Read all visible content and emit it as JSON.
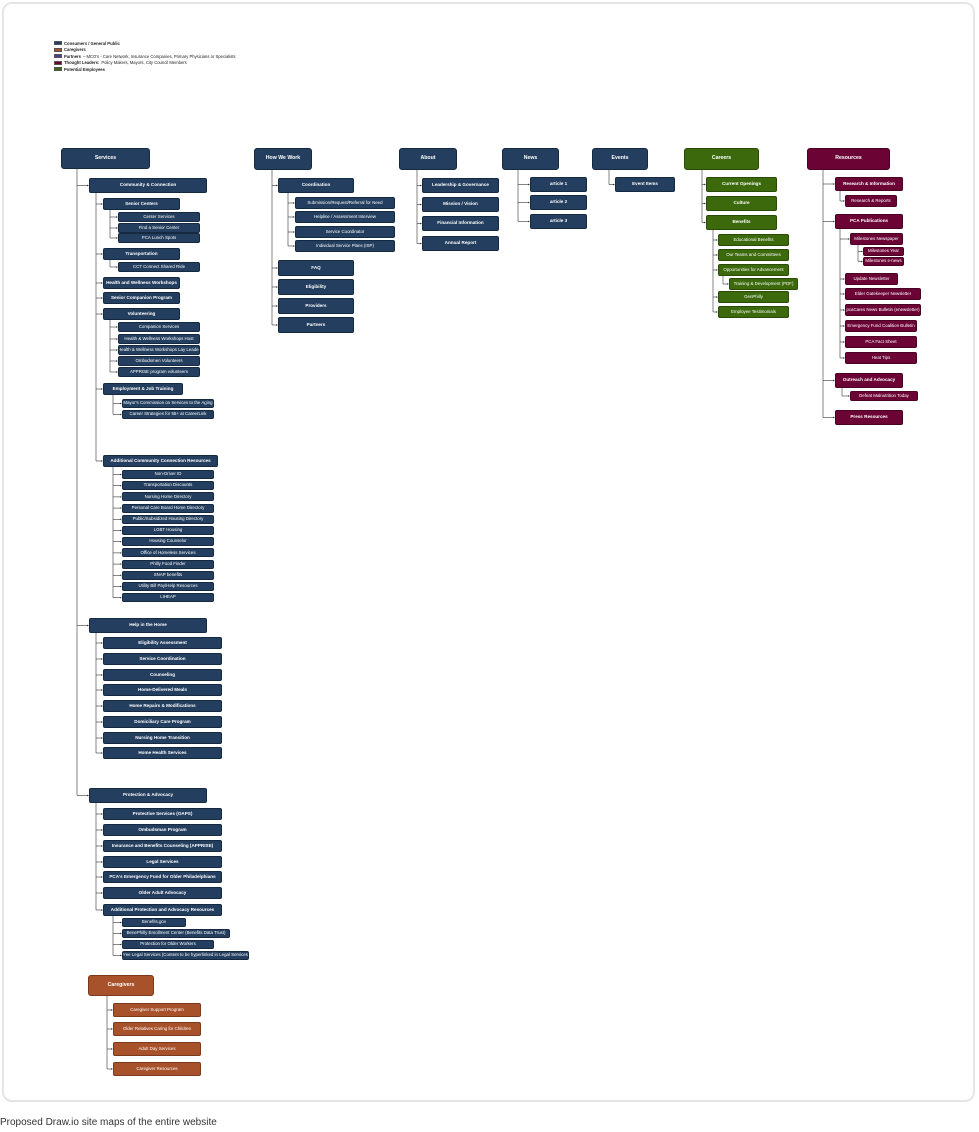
{
  "legend": [
    {
      "label": "Consumers / General Public",
      "detail": "",
      "color": "#233e5e"
    },
    {
      "label": "Caregivers",
      "detail": "",
      "color": "#a8522b"
    },
    {
      "label": "Partners",
      "detail": "– MCO's - Care Network, Insurance Companies, Primary Physicians or Specialists",
      "color": "#4a3f8f"
    },
    {
      "label": "Thought Leaders:",
      "detail": "Policy Makers, Mayors, City Council Members",
      "color": "#6b0435"
    },
    {
      "label": "Potential Employees",
      "detail": "",
      "color": "#3b690c"
    }
  ],
  "caption": "Proposed Draw.io site maps of the entire website",
  "colors": {
    "navy": "#233e5e",
    "green": "#3b690c",
    "maroon": "#6b0435",
    "orange": "#a8522b"
  },
  "sitemap": {
    "services": {
      "label": "Services",
      "community_connection": {
        "label": "Community & Connection",
        "senior_centers": {
          "label": "Senior Centers",
          "items": [
            "Center Services",
            "Find a Senior Center",
            "PCA Lunch Spots"
          ]
        },
        "transportation": {
          "label": "Transportation",
          "items": [
            "CCT Connect Shared Ride"
          ]
        },
        "health_wellness": "Health and Wellness Workshops",
        "senior_companion": "Senior Companion Program",
        "volunteering": {
          "label": "Volunteering",
          "items": [
            "Companion Services",
            "Health & Wellness Workshops Host",
            "Health & Wellness Workshops Lay Leader",
            "Ombudsmen Volunteers",
            "APPRISE program volunteers"
          ]
        },
        "employment": {
          "label": "Employment & Job Training",
          "items": [
            "Mayor's Commission on Services to the Aging",
            "Career Strategies for 55+ at CareerLink"
          ]
        },
        "additional": {
          "label": "Additional Community Connection Resources",
          "items": [
            "Non-Driver ID",
            "Transportation Discounts",
            "Nursing Home Directory",
            "Personal Care Board Home Directory",
            "Public/Subsidized Housing Directory",
            "LGBT Housing",
            "Housing Counselor",
            "Office of Homeless Services",
            "Philly Food Finder",
            "SNAP benefits",
            "Utility Bill Pay/Help Resources",
            "LIHEAP"
          ]
        }
      },
      "help_in_home": {
        "label": "Help in the Home",
        "items": [
          "Eligibility Assessment",
          "Service Coordination",
          "Counseling",
          "Home-Delivered Meals",
          "Home Repairs & Modifications",
          "Domiciliary Care Program",
          "Nursing Home Transition",
          "Home Health Services"
        ]
      },
      "protection": {
        "label": "Protection & Advocacy",
        "items": [
          "Protective Services (OAPS)",
          "Ombudsman Program",
          "Insurance and Benefits Counseling (APPRISE)",
          "Legal Services",
          "PCA's Emergency Fund for Older Philadelphians",
          "Older Adult Advocacy"
        ],
        "additional": {
          "label": "Additional Protection and Advocacy Resources",
          "items": [
            "Benefits.gov",
            "BenePhilly Enrollment Center (Benefits Data Trust)",
            "Protection for Older Workers",
            "Free Legal Services (Content to be hyperlinked in Legal Services)"
          ]
        }
      }
    },
    "caregivers": {
      "label": "Caregivers",
      "items": [
        "Caregiver Support Program",
        "Older Relatives Caring for Children",
        "Adult Day Services",
        "Caregiver Resources"
      ]
    },
    "how_we_work": {
      "label": "How We Work",
      "coordination": {
        "label": "Coordination",
        "items": [
          "Submission/Request/Referral for Need",
          "Helpline / Assessment Interview",
          "Service Coordinator",
          "Individual Service Plans (ISP)"
        ]
      },
      "items": [
        "FAQ",
        "Eligibility",
        "Providers",
        "Partners"
      ]
    },
    "about": {
      "label": "About",
      "items": [
        "Leadership & Governance",
        "Mission / Vision",
        "Financial Information",
        "Annual Report"
      ]
    },
    "news": {
      "label": "News",
      "items": [
        "article 1",
        "article 2",
        "article 3"
      ]
    },
    "events": {
      "label": "Events",
      "items": [
        "Event Items"
      ]
    },
    "careers": {
      "label": "Careers",
      "items": [
        "Current Openings",
        "Culture"
      ],
      "benefits": {
        "label": "Benefits",
        "items": [
          "Educational Benefits",
          "Our Teams and Committees",
          "Opportunities for Advancement",
          "Training & Development (PDF)",
          "GenPhilly",
          "Employee Testimonials"
        ]
      }
    },
    "resources": {
      "label": "Resources",
      "research": {
        "label": "Research & Information",
        "items": [
          "Research & Reports"
        ]
      },
      "publications": {
        "label": "PCA Publications",
        "milestones": {
          "label": "Milestones Newspaper",
          "items": [
            "Milestones Year",
            "Milestones e-news"
          ]
        },
        "items": [
          "Update Newsletter",
          "Elder Gatekeeper Newsletter",
          "pcaCares News Bulletin (enewsletter)",
          "Emergency Fund Coalition Bulletin",
          "PCA Fact Sheet",
          "Heat Tips"
        ]
      },
      "outreach": {
        "label": "Outreach and Advocacy",
        "items": [
          "Defeat Malnutrition Today"
        ]
      },
      "press": "Press Resources"
    }
  }
}
